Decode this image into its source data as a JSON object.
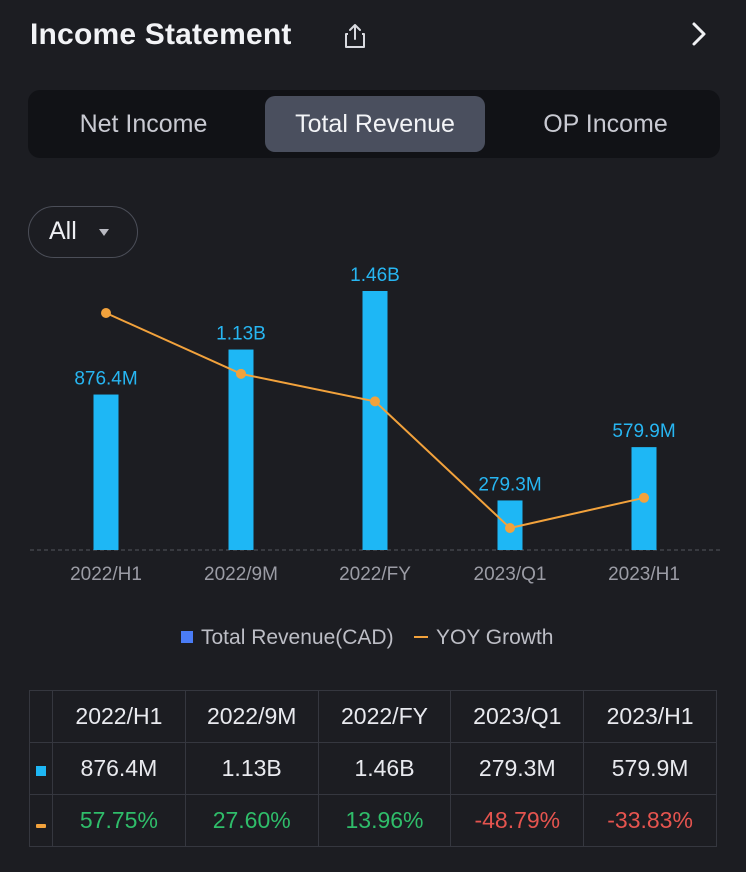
{
  "header": {
    "title": "Income Statement"
  },
  "tabs": [
    {
      "label": "Net Income",
      "active": false
    },
    {
      "label": "Total Revenue",
      "active": true
    },
    {
      "label": "OP Income",
      "active": false
    }
  ],
  "filter": {
    "selected": "All"
  },
  "legend": {
    "bar": "Total Revenue(CAD)",
    "line": "YOY Growth"
  },
  "colors": {
    "bar": "#1eb7f5",
    "line": "#f2a23c",
    "positive": "#2fbd6a",
    "negative": "#e5544f"
  },
  "chart_data": {
    "type": "bar",
    "categories": [
      "2022/H1",
      "2022/9M",
      "2022/FY",
      "2023/Q1",
      "2023/H1"
    ],
    "series": [
      {
        "name": "Total Revenue(CAD)",
        "type": "bar",
        "values": [
          876.4,
          1130,
          1460,
          279.3,
          579.9
        ],
        "unit": "M CAD",
        "labels": [
          "876.4M",
          "1.13B",
          "1.46B",
          "279.3M",
          "579.9M"
        ]
      },
      {
        "name": "YOY Growth",
        "type": "line",
        "values": [
          57.75,
          27.6,
          13.96,
          -48.79,
          -33.83
        ],
        "unit": "%"
      }
    ],
    "ylim": [
      0,
      1460
    ],
    "growth_range": [
      -48.79,
      57.75
    ]
  },
  "table": {
    "headers": [
      "2022/H1",
      "2022/9M",
      "2022/FY",
      "2023/Q1",
      "2023/H1"
    ],
    "revenue": [
      "876.4M",
      "1.13B",
      "1.46B",
      "279.3M",
      "579.9M"
    ],
    "growth": [
      "57.75%",
      "27.60%",
      "13.96%",
      "-48.79%",
      "-33.83%"
    ]
  }
}
